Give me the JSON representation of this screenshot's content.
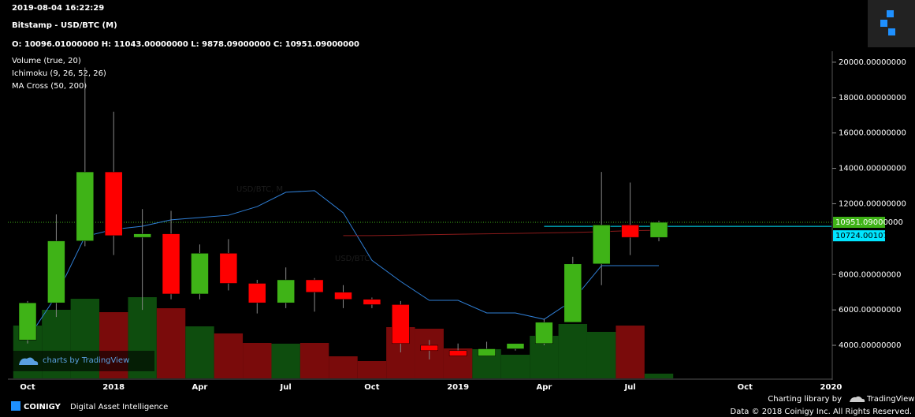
{
  "header": {
    "timestamp": "2019-08-04 16:22:29",
    "title": "Bitstamp - USD/BTC (M)",
    "ohlc": "O: 10096.01000000 H: 11043.00000000 L: 9878.09000000 C: 10951.09000000",
    "indicators": [
      "Volume (true, 20)",
      "Ichimoku (9, 26, 52, 26)",
      "MA Cross (50, 200)"
    ]
  },
  "watermark": {
    "main": "USD/BTC, M",
    "sub": "USD/BTC"
  },
  "chart_data": {
    "type": "candlestick",
    "categories": [
      "Oct",
      null,
      null,
      "2018",
      null,
      null,
      "Apr",
      null,
      null,
      "Jul",
      null,
      null,
      "Oct",
      null,
      null,
      "2019",
      null,
      null,
      "Apr",
      null,
      null,
      "Jul",
      null,
      null,
      null,
      "Oct",
      null,
      null,
      "2020"
    ],
    "open": [
      4300,
      6400,
      9900,
      13800,
      10100,
      10300,
      6900,
      9200,
      7500,
      6400,
      7700,
      7000,
      6600,
      6300,
      4000,
      3700,
      3400,
      3800,
      4100,
      5300,
      8600,
      10800,
      10096.01,
      null,
      null,
      null,
      null,
      null,
      null
    ],
    "high": [
      6500,
      11400,
      19700,
      17200,
      11700,
      11600,
      9700,
      10000,
      7700,
      8400,
      7800,
      7400,
      6700,
      6500,
      4300,
      4100,
      4200,
      4100,
      5500,
      9000,
      13800,
      13200,
      11043,
      null,
      null,
      null,
      null,
      null,
      null
    ],
    "low": [
      4100,
      5600,
      9600,
      9100,
      6000,
      6600,
      6600,
      7100,
      5800,
      6100,
      5900,
      6100,
      6100,
      3600,
      3200,
      3400,
      3400,
      3700,
      4000,
      5300,
      7400,
      9100,
      9878.09,
      null,
      null,
      null,
      null,
      null,
      null
    ],
    "close": [
      6400,
      9900,
      13800,
      10200,
      10300,
      6900,
      9200,
      7500,
      6400,
      7700,
      7000,
      6600,
      6300,
      4100,
      3700,
      3400,
      3800,
      4100,
      5300,
      8600,
      10800,
      10100,
      10951.09,
      null,
      null,
      null,
      null,
      null,
      null
    ],
    "up_color": "#3fb317",
    "down_color": "#ff0000",
    "volume": {
      "values": [
        67,
        87,
        101,
        84,
        103,
        89,
        66,
        57,
        45,
        44,
        45,
        28,
        22,
        65,
        63,
        38,
        37,
        30,
        54,
        69,
        59,
        67,
        6,
        null,
        null,
        null,
        null,
        null,
        null
      ],
      "ylim": [
        0,
        415
      ],
      "up_color": "#0e4d0e",
      "down_color": "#7a0b0b"
    },
    "series": [
      {
        "name": "Ichimoku",
        "color": "#2f7fd6",
        "values": [
          4350,
          6800,
          10150,
          10550,
          10730,
          11090,
          11220,
          11350,
          11840,
          12650,
          12740,
          11490,
          8800,
          7610,
          6540,
          6540,
          5830,
          5830,
          5470,
          6540,
          8500,
          8500,
          8500,
          null,
          null,
          null,
          null,
          null,
          null
        ]
      },
      {
        "name": "MA Cross",
        "color": "#8a1a1a",
        "values": [
          null,
          null,
          null,
          null,
          null,
          null,
          null,
          null,
          null,
          null,
          null,
          10200,
          10200,
          10220,
          10250,
          10280,
          10300,
          10320,
          10350,
          10380,
          10420,
          10480,
          10500,
          null,
          null,
          null,
          null,
          null,
          null
        ]
      }
    ],
    "ylim": [
      2130,
      20620
    ],
    "yticks": [
      {
        "value": 20000,
        "label": "20000.00000000"
      },
      {
        "value": 18000,
        "label": "18000.00000000"
      },
      {
        "value": 16000,
        "label": "16000.00000000"
      },
      {
        "value": 14000,
        "label": "14000.00000000"
      },
      {
        "value": 12000,
        "label": "12000.00000000"
      },
      {
        "value": 8000,
        "label": "8000.00000000"
      },
      {
        "value": 6000,
        "label": "6000.00000000"
      },
      {
        "value": 4000,
        "label": "4000.00000000"
      }
    ],
    "last_close": {
      "value": 10951.09,
      "label": "10951.09000000",
      "color": "#3fb317"
    },
    "price_line": {
      "value": 10724.00107643,
      "label": "10724.00107643",
      "color": "#00e5ff"
    }
  },
  "footer": {
    "badge": "charts by TradingView",
    "brand": "COINIGY",
    "tagline": "Digital Asset Intelligence",
    "library": "Charting library by",
    "library_name": "TradingView",
    "copyright": "Data © 2018 Coinigy Inc. All Rights Reserved."
  }
}
